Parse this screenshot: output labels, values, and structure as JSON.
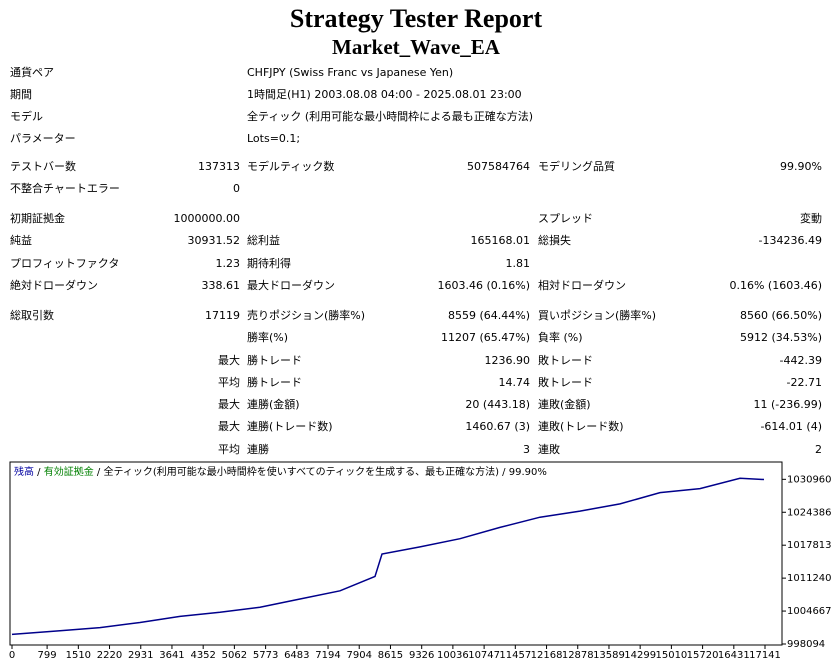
{
  "header": {
    "title": "Strategy Tester Report",
    "subtitle": "Market_Wave_EA"
  },
  "info": [
    {
      "label": "通貨ペア",
      "value": "CHFJPY (Swiss Franc vs Japanese Yen)"
    },
    {
      "label": "期間",
      "value": "1時間足(H1) 2003.08.08 04:00 - 2025.08.01 23:00"
    },
    {
      "label": "モデル",
      "value": "全ティック (利用可能な最小時間枠による最も正確な方法)"
    },
    {
      "label": "パラメーター",
      "value": "Lots=0.1;"
    }
  ],
  "stats": [
    [
      "テストバー数",
      "137313",
      "モデルティック数",
      "507584764",
      "モデリング品質",
      "99.90%"
    ],
    [
      "不整合チャートエラー",
      "0",
      null,
      null,
      null,
      null
    ],
    [
      "初期証拠金",
      "1000000.00",
      null,
      null,
      "スプレッド",
      "変動"
    ],
    [
      "純益",
      "30931.52",
      "総利益",
      "165168.01",
      "総損失",
      "-134236.49"
    ],
    [
      "プロフィットファクタ",
      "1.23",
      "期待利得",
      "1.81",
      null,
      null
    ],
    [
      "絶対ドローダウン",
      "338.61",
      "最大ドローダウン",
      "1603.46 (0.16%)",
      "相対ドローダウン",
      "0.16% (1603.46)"
    ],
    [
      "総取引数",
      "17119",
      "売りポジション(勝率%)",
      "8559 (64.44%)",
      "買いポジション(勝率%)",
      "8560 (66.50%)"
    ],
    [
      null,
      null,
      "勝率(%)",
      "11207 (65.47%)",
      "負率 (%)",
      "5912 (34.53%)"
    ],
    [
      null,
      "最大",
      "勝トレード",
      "1236.90",
      "敗トレード",
      "-442.39"
    ],
    [
      null,
      "平均",
      "勝トレード",
      "14.74",
      "敗トレード",
      "-22.71"
    ],
    [
      null,
      "最大",
      "連勝(金額)",
      "20 (443.18)",
      "連敗(金額)",
      "11 (-236.99)"
    ],
    [
      null,
      "最大",
      "連勝(トレード数)",
      "1460.67 (3)",
      "連敗(トレード数)",
      "-614.01 (4)"
    ],
    [
      null,
      "平均",
      "連勝",
      "3",
      "連敗",
      "2"
    ]
  ],
  "chart_data": {
    "type": "line",
    "legend": [
      "残高",
      "有効証拠金",
      "全ティック(利用可能な最小時間枠を使いすべてのティックを生成する、最も正確な方法)",
      "99.90%"
    ],
    "legend_colors": [
      "#0000a0",
      "#008000",
      "#000000",
      "#000000"
    ],
    "x": [
      0,
      1093,
      2003,
      2914,
      3825,
      4735,
      5645,
      6556,
      7466,
      8263,
      8423,
      9288,
      10198,
      11109,
      12019,
      12930,
      13840,
      14751,
      15661,
      16572,
      17119
    ],
    "series": [
      {
        "name": "残高",
        "color": "#00008b",
        "values": [
          1000000,
          1000747,
          1001360,
          1002380,
          1003605,
          1004421,
          1005442,
          1007074,
          1008707,
          1011564,
          1016054,
          1017483,
          1019116,
          1021361,
          1023402,
          1024627,
          1026056,
          1028301,
          1029117,
          1031158,
          1030931.52
        ]
      }
    ],
    "xlim": [
      0,
      17505
    ],
    "ylim": [
      998094,
      1034218
    ],
    "xticks": [
      0,
      799,
      1510,
      2220,
      2931,
      3641,
      4352,
      5062,
      5773,
      6483,
      7194,
      7904,
      8615,
      9326,
      10036,
      10747,
      11457,
      12168,
      12878,
      13589,
      14299,
      15010,
      15720,
      16431,
      17141
    ],
    "yticks": [
      998094,
      1004667,
      1011240,
      1017813,
      1024386,
      1030960
    ]
  }
}
